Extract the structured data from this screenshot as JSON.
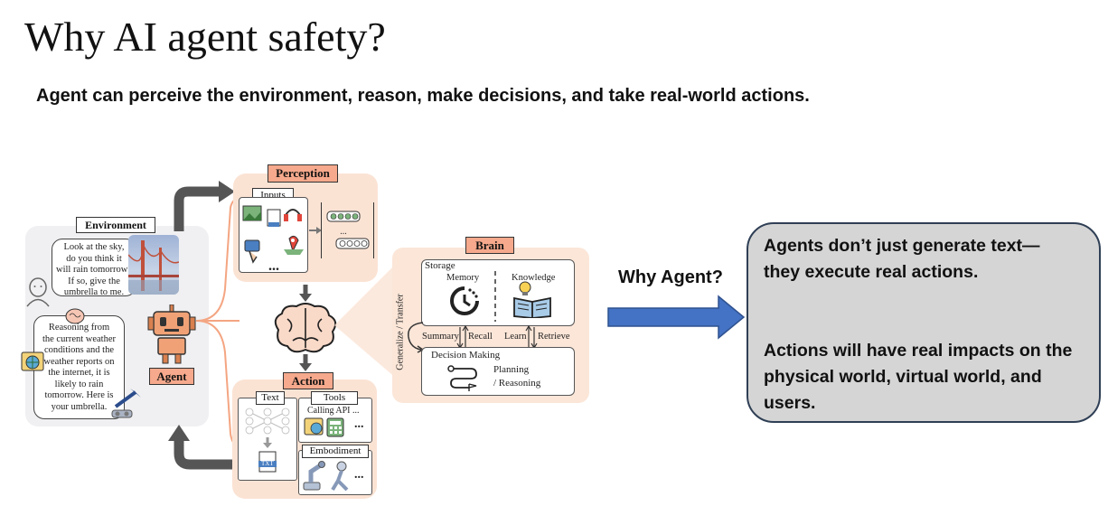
{
  "slide": {
    "title": "Why AI agent safety?",
    "subtitle": "Agent can perceive the environment, reason, make decisions, and take real-world actions."
  },
  "diagram": {
    "environment": {
      "label": "Environment",
      "bubble_top": [
        "Look at the sky,",
        "do you think it",
        "will rain tomorrow?",
        "If so, give the",
        "umbrella to me."
      ],
      "bubble_bottom": [
        "Reasoning from",
        "the current weather",
        "conditions and the",
        "weather reports on",
        "the internet, it is",
        "likely to rain",
        "tomorrow. Here is",
        "your umbrella."
      ],
      "agent_label": "Agent"
    },
    "perception": {
      "label": "Perception",
      "inputs_label": "Inputs",
      "ellipsis": "..."
    },
    "brain": {
      "label": "Brain",
      "storage_label": "Storage",
      "memory_label": "Memory",
      "knowledge_label": "Knowledge",
      "generalize_label": "Generalize / Transfer",
      "summary_label": "Summary",
      "recall_label": "Recall",
      "learn_label": "Learn",
      "retrieve_label": "Retrieve",
      "decision_label": "Decision Making",
      "planning_label": "Planning",
      "reasoning_label": "/ Reasoning"
    },
    "action": {
      "label": "Action",
      "text_label": "Text",
      "tools_label": "Tools",
      "calling_api_label": "Calling API ...",
      "embodiment_label": "Embodiment",
      "ellipsis": "...",
      "txt_badge": "TXT"
    }
  },
  "why_agent": {
    "label": "Why Agent?",
    "arrow_color": "#4472c4"
  },
  "callout": {
    "line1": "Agents don’t just generate text—",
    "line2": "they execute real actions.",
    "line3": "Actions will have real impacts on the",
    "line4": "physical world, virtual world, and",
    "line5": "users."
  }
}
